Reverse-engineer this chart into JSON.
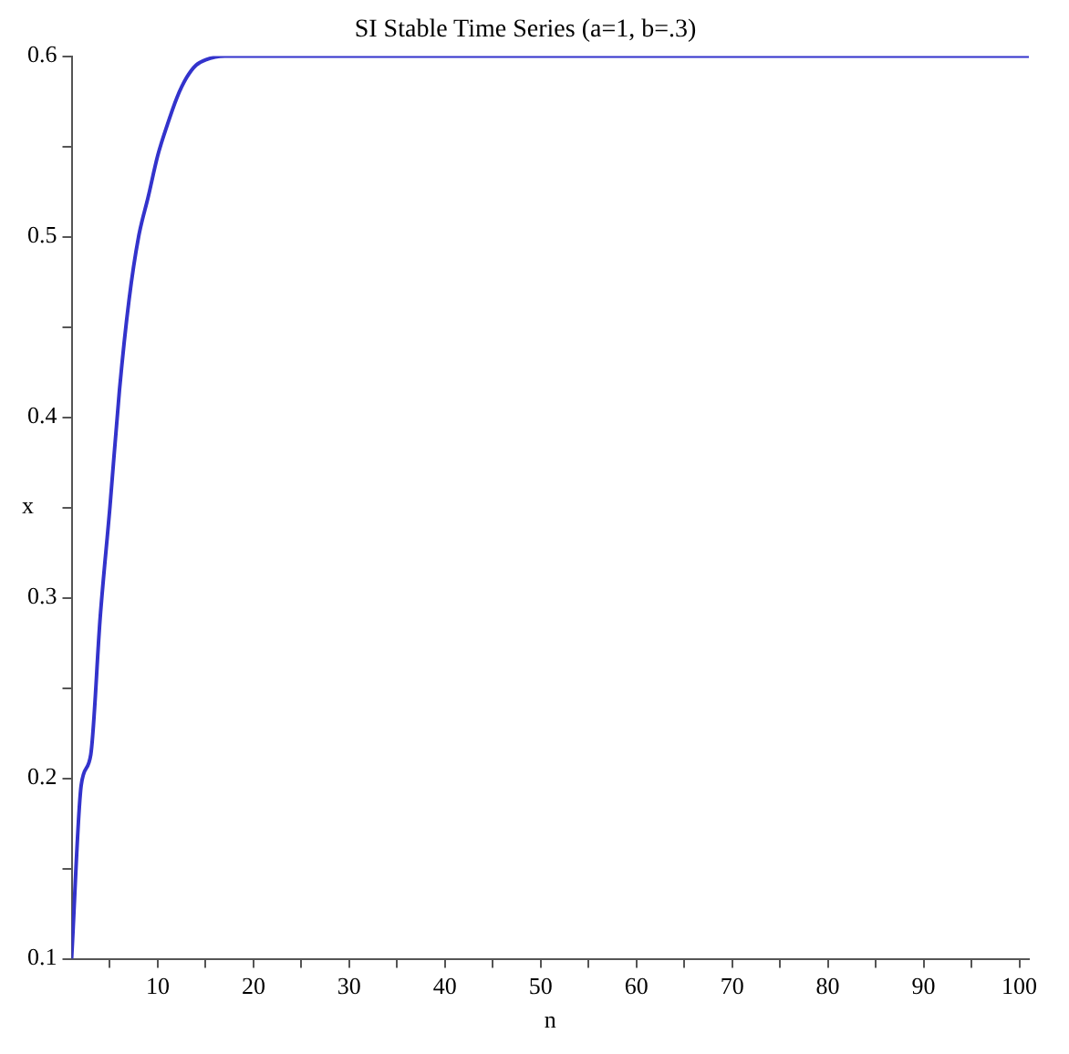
{
  "chart_data": {
    "type": "line",
    "title": "SI Stable Time Series (a=1, b=.3)",
    "xlabel": "n",
    "ylabel": "x",
    "x": [
      1,
      2,
      3,
      4,
      5,
      6,
      7,
      8,
      9,
      10,
      11,
      12,
      13,
      14,
      15,
      17,
      20,
      30,
      50,
      101
    ],
    "series": [
      {
        "color": "#3333cc",
        "values": [
          0.1,
          0.196,
          0.213,
          0.29,
          0.35,
          0.415,
          0.465,
          0.5,
          0.522,
          0.545,
          0.562,
          0.577,
          0.588,
          0.595,
          0.598,
          0.6,
          0.6,
          0.6,
          0.6,
          0.6
        ]
      }
    ],
    "xlim": [
      1,
      101
    ],
    "ylim": [
      0.1,
      0.6
    ],
    "xticks": [
      {
        "value": 5,
        "label": null
      },
      10,
      {
        "value": 15,
        "label": null
      },
      20,
      {
        "value": 25,
        "label": null
      },
      30,
      {
        "value": 35,
        "label": null
      },
      40,
      {
        "value": 45,
        "label": null
      },
      50,
      {
        "value": 55,
        "label": null
      },
      60,
      {
        "value": 65,
        "label": null
      },
      70,
      {
        "value": 75,
        "label": null
      },
      80,
      {
        "value": 85,
        "label": null
      },
      90,
      {
        "value": 95,
        "label": null
      },
      100
    ],
    "yticks": [
      0.1,
      {
        "value": 0.15,
        "label": null
      },
      0.2,
      {
        "value": 0.25,
        "label": null
      },
      0.3,
      {
        "value": 0.35,
        "label": null
      },
      0.4,
      {
        "value": 0.45,
        "label": null
      },
      0.5,
      {
        "value": 0.55,
        "label": null
      },
      0.6
    ],
    "grid": false,
    "legend": false,
    "marker": "none",
    "line_style": "solid"
  }
}
